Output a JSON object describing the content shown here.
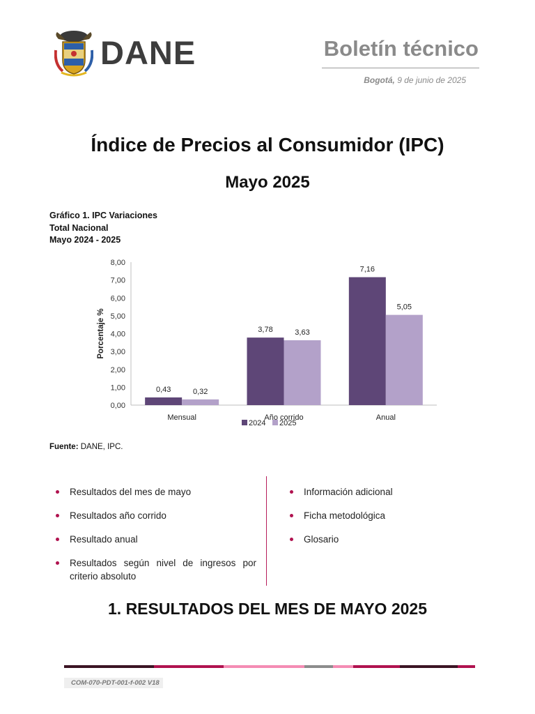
{
  "header": {
    "logo_text": "DANE",
    "doc_type": "Boletín técnico",
    "date_city": "Bogotá,",
    "date_rest": "9 de junio de 2025"
  },
  "title": "Índice de Precios al Consumidor (IPC)",
  "subtitle": "Mayo 2025",
  "chart_caption": [
    "Gráfico 1. IPC Variaciones",
    "Total Nacional",
    "Mayo 2024 - 2025"
  ],
  "chart_data": {
    "type": "bar",
    "categories": [
      "Mensual",
      "Año corrido",
      "Anual"
    ],
    "series": [
      {
        "name": "2024",
        "values": [
          0.43,
          3.78,
          7.16
        ],
        "labels": [
          "0,43",
          "3,78",
          "7,16"
        ],
        "color": "#5e4677"
      },
      {
        "name": "2025",
        "values": [
          0.32,
          3.63,
          5.05
        ],
        "labels": [
          "0,32",
          "3,63",
          "5,05"
        ],
        "color": "#b3a1c9"
      }
    ],
    "ylabel": "Porcentaje %",
    "ylim": [
      0,
      8
    ],
    "yticks": [
      0,
      1,
      2,
      3,
      4,
      5,
      6,
      7,
      8
    ],
    "ytick_labels": [
      "0,00",
      "1,00",
      "2,00",
      "3,00",
      "4,00",
      "5,00",
      "6,00",
      "7,00",
      "8,00"
    ],
    "grid": false,
    "legend_position": "bottom"
  },
  "source": {
    "label": "Fuente:",
    "text": "DANE, IPC."
  },
  "bullets_left": [
    "Resultados del mes de mayo",
    "Resultados año corrido",
    "Resultado anual",
    "Resultados según nivel de ingresos por criterio absoluto"
  ],
  "bullets_right": [
    "Información adicional",
    "Ficha metodológica",
    "Glosario"
  ],
  "section_heading": "1. RESULTADOS DEL MES DE MAYO 2025",
  "footer": {
    "code": "COM-070-PDT-001-f-002 V18",
    "bar_colors": [
      "#3b1424",
      "#b0124f",
      "#f48cb4",
      "#f48cb4",
      "#8c8c8c",
      "#f48cb4",
      "#b0124f",
      "#3b1424",
      "#b0124f"
    ]
  },
  "colors": {
    "accent": "#b0124f",
    "divider": "#b71c5a"
  }
}
